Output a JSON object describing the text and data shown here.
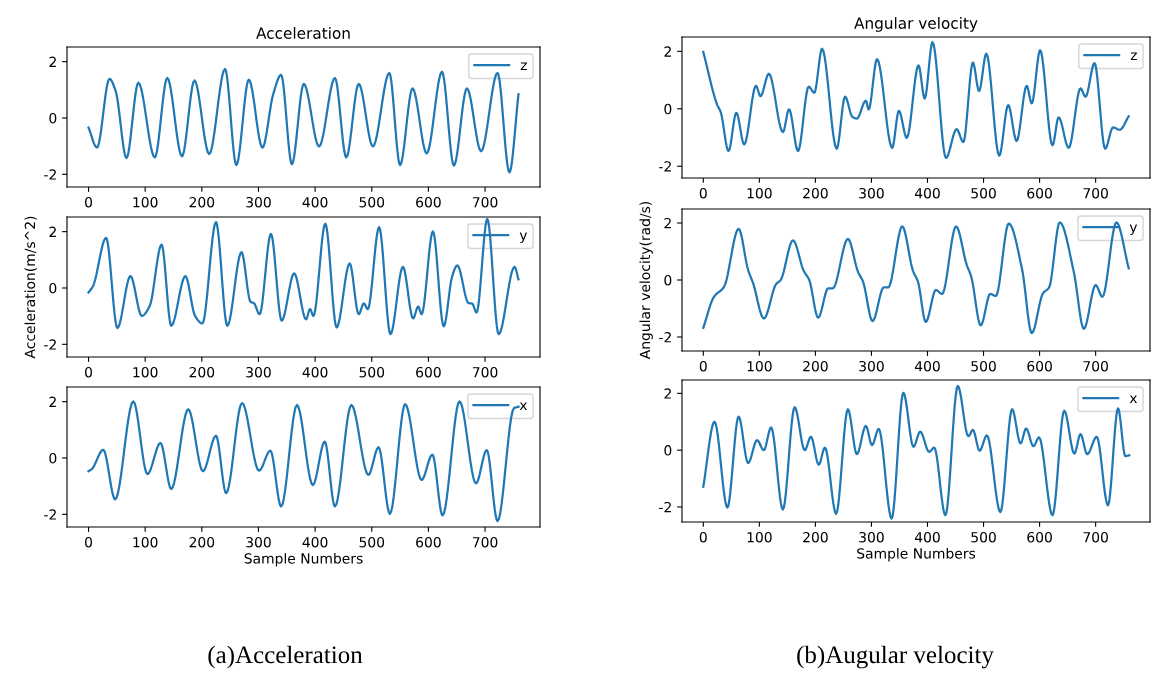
{
  "chart_data": [
    {
      "type": "line",
      "title": "Acceleration",
      "xlim": [
        -38,
        797
      ],
      "ylim": [
        -2.45,
        2.52
      ],
      "xticks": [
        0,
        100,
        200,
        300,
        400,
        500,
        600,
        700
      ],
      "yticks": [
        -2,
        0,
        2
      ],
      "legend": "top right",
      "grid": false,
      "series": [
        {
          "name": "z",
          "color": "#1f77b4",
          "x": [
            0,
            15,
            37,
            48,
            67,
            88,
            117,
            139,
            165,
            187,
            213,
            241,
            261,
            283,
            307,
            326,
            340,
            359,
            380,
            407,
            435,
            455,
            477,
            502,
            531,
            550,
            572,
            597,
            624,
            645,
            668,
            693,
            722,
            743,
            759
          ],
          "values": [
            -0.34,
            -1.05,
            1.39,
            0.95,
            -1.42,
            1.25,
            -1.4,
            1.42,
            -1.36,
            1.33,
            -1.28,
            1.74,
            -1.67,
            1.36,
            -1.05,
            0.84,
            1.53,
            -1.64,
            1.21,
            -1.01,
            1.42,
            -1.4,
            1.21,
            -1.01,
            1.6,
            -1.67,
            1.05,
            -1.26,
            1.64,
            -1.69,
            1.05,
            -1.18,
            1.6,
            -1.93,
            0.84
          ]
        }
      ]
    },
    {
      "type": "line",
      "ylabel": "Acceleration(m/s^2)",
      "xlim": [
        -38,
        797
      ],
      "ylim": [
        -2.45,
        2.52
      ],
      "xticks": [
        0,
        100,
        200,
        300,
        400,
        500,
        600,
        700
      ],
      "yticks": [
        -2,
        0,
        2
      ],
      "legend": "top right",
      "grid": false,
      "series": [
        {
          "name": "y",
          "color": "#1f77b4",
          "x": [
            0,
            8,
            31,
            51,
            74,
            94,
            108,
            129,
            146,
            171,
            188,
            201,
            225,
            245,
            270,
            286,
            292,
            302,
            322,
            341,
            363,
            384,
            391,
            397,
            418,
            438,
            461,
            477,
            486,
            493,
            513,
            533,
            555,
            573,
            582,
            588,
            608,
            627,
            642,
            651,
            671,
            677,
            685,
            704,
            724,
            752,
            759
          ],
          "values": [
            -0.16,
            0.07,
            1.78,
            -1.42,
            0.42,
            -0.99,
            -0.64,
            1.54,
            -1.34,
            0.42,
            -0.99,
            -1.26,
            2.34,
            -1.34,
            1.27,
            -0.49,
            -0.54,
            -0.93,
            1.92,
            -1.16,
            0.52,
            -1.11,
            -0.75,
            -0.99,
            2.28,
            -1.4,
            0.87,
            -0.93,
            -0.55,
            -0.75,
            2.16,
            -1.64,
            0.75,
            -1.08,
            -0.66,
            -0.93,
            2.01,
            -1.36,
            0.42,
            0.8,
            -0.54,
            -0.55,
            -0.87,
            2.45,
            -1.64,
            0.75,
            0.31
          ]
        }
      ]
    },
    {
      "type": "line",
      "xlabel": "Sample Numbers",
      "xlim": [
        -38,
        797
      ],
      "ylim": [
        -2.45,
        2.52
      ],
      "xticks": [
        0,
        100,
        200,
        300,
        400,
        500,
        600,
        700
      ],
      "yticks": [
        -2,
        0,
        2
      ],
      "legend": "top right",
      "grid": false,
      "annotations": [
        "(a)Acceleration"
      ],
      "series": [
        {
          "name": "x",
          "color": "#1f77b4",
          "x": [
            0,
            6,
            26,
            47,
            79,
            104,
            127,
            146,
            176,
            202,
            225,
            243,
            271,
            301,
            321,
            340,
            368,
            396,
            417,
            435,
            464,
            494,
            512,
            532,
            559,
            588,
            607,
            625,
            655,
            684,
            703,
            722,
            751,
            759
          ],
          "values": [
            -0.47,
            -0.39,
            0.29,
            -1.47,
            2.01,
            -0.57,
            0.53,
            -1.1,
            1.73,
            -0.47,
            0.79,
            -1.25,
            1.95,
            -0.45,
            0.26,
            -1.72,
            1.88,
            -0.96,
            0.58,
            -1.72,
            1.88,
            -0.6,
            0.38,
            -1.98,
            1.91,
            -0.78,
            0.12,
            -2.04,
            2.01,
            -0.9,
            0.28,
            -2.24,
            1.77,
            1.82
          ]
        }
      ]
    },
    {
      "type": "line",
      "title": "Angular velocity",
      "xlim": [
        -38,
        797
      ],
      "ylim": [
        -2.41,
        2.5
      ],
      "xticks": [
        0,
        100,
        200,
        300,
        400,
        500,
        600,
        700
      ],
      "yticks": [
        -2,
        0,
        2
      ],
      "legend": "top right",
      "grid": false,
      "series": [
        {
          "name": "z",
          "color": "#1f77b4",
          "x": [
            0,
            25,
            31,
            45,
            59,
            73,
            94,
            102,
            117,
            142,
            153,
            169,
            188,
            198,
            212,
            238,
            253,
            266,
            274,
            290,
            295,
            310,
            337,
            349,
            363,
            384,
            395,
            409,
            433,
            452,
            464,
            481,
            492,
            505,
            528,
            544,
            559,
            577,
            586,
            601,
            623,
            634,
            652,
            673,
            682,
            698,
            717,
            731,
            743,
            759
          ],
          "values": [
            1.98,
            0.13,
            -0.11,
            -1.47,
            -0.14,
            -1.24,
            0.8,
            0.44,
            1.22,
            -0.81,
            -0.02,
            -1.47,
            0.77,
            0.56,
            2.09,
            -1.39,
            0.42,
            -0.28,
            -0.34,
            0.28,
            -0.02,
            1.73,
            -1.36,
            -0.07,
            -1.01,
            1.51,
            0.36,
            2.32,
            -1.71,
            -0.71,
            -1.16,
            1.61,
            0.62,
            1.92,
            -1.63,
            0.13,
            -1.12,
            0.8,
            0.19,
            2.04,
            -1.27,
            -0.3,
            -1.36,
            0.71,
            0.42,
            1.59,
            -1.39,
            -0.65,
            -0.73,
            -0.26
          ]
        }
      ]
    },
    {
      "type": "line",
      "ylabel": "Angular velocity(rad/s)",
      "xlim": [
        -38,
        797
      ],
      "ylim": [
        -2.49,
        2.49
      ],
      "xticks": [
        0,
        100,
        200,
        300,
        400,
        500,
        600,
        700
      ],
      "yticks": [
        -2,
        0,
        2
      ],
      "legend": "top right",
      "grid": false,
      "series": [
        {
          "name": "y",
          "color": "#1f77b4",
          "x": [
            0,
            19,
            37,
            63,
            80,
            89,
            108,
            130,
            138,
            160,
            179,
            189,
            205,
            223,
            231,
            258,
            276,
            285,
            302,
            322,
            330,
            355,
            374,
            383,
            397,
            415,
            426,
            451,
            470,
            478,
            495,
            512,
            522,
            545,
            569,
            586,
            606,
            617,
            636,
            661,
            679,
            700,
            712,
            737,
            759
          ],
          "values": [
            -1.68,
            -0.59,
            -0.24,
            1.79,
            0.35,
            -0.12,
            -1.35,
            -0.14,
            0.0,
            1.39,
            0.33,
            0.0,
            -1.32,
            -0.29,
            -0.29,
            1.44,
            0.29,
            -0.06,
            -1.44,
            -0.26,
            -0.26,
            1.88,
            0.33,
            -0.06,
            -1.47,
            -0.35,
            -0.49,
            1.88,
            0.53,
            0.12,
            -1.59,
            -0.49,
            -0.56,
            1.98,
            0.35,
            -1.86,
            -0.47,
            -0.26,
            2.02,
            0.29,
            -1.71,
            -0.18,
            -0.59,
            2.02,
            0.41
          ]
        }
      ]
    },
    {
      "type": "line",
      "xlabel": "Sample Numbers",
      "xlim": [
        -38,
        797
      ],
      "ylim": [
        -2.53,
        2.47
      ],
      "xticks": [
        0,
        100,
        200,
        300,
        400,
        500,
        600,
        700
      ],
      "yticks": [
        -2,
        0,
        2
      ],
      "legend": "top right",
      "grid": false,
      "annotations": [
        "(b)Augular velocity"
      ],
      "series": [
        {
          "name": "x",
          "color": "#1f77b4",
          "x": [
            0,
            20,
            43,
            63,
            80,
            96,
            108,
            121,
            142,
            163,
            181,
            192,
            206,
            217,
            237,
            258,
            274,
            290,
            301,
            313,
            336,
            357,
            375,
            387,
            403,
            412,
            432,
            454,
            473,
            481,
            493,
            506,
            530,
            551,
            566,
            576,
            589,
            599,
            623,
            644,
            662,
            673,
            685,
            702,
            722,
            740,
            753,
            760
          ],
          "values": [
            -1.29,
            1.0,
            -2.02,
            1.18,
            -0.45,
            0.35,
            0.0,
            0.8,
            -2.09,
            1.51,
            0.0,
            0.47,
            -0.51,
            0.09,
            -2.24,
            1.44,
            -0.14,
            0.85,
            0.18,
            0.75,
            -2.41,
            2.02,
            0.12,
            0.65,
            -0.06,
            0.09,
            -2.29,
            2.26,
            0.49,
            0.71,
            -0.02,
            0.52,
            -2.18,
            1.44,
            0.24,
            0.76,
            0.14,
            0.45,
            -2.29,
            1.39,
            -0.12,
            0.56,
            -0.14,
            0.47,
            -1.94,
            1.47,
            -0.21,
            -0.18
          ]
        }
      ]
    }
  ]
}
